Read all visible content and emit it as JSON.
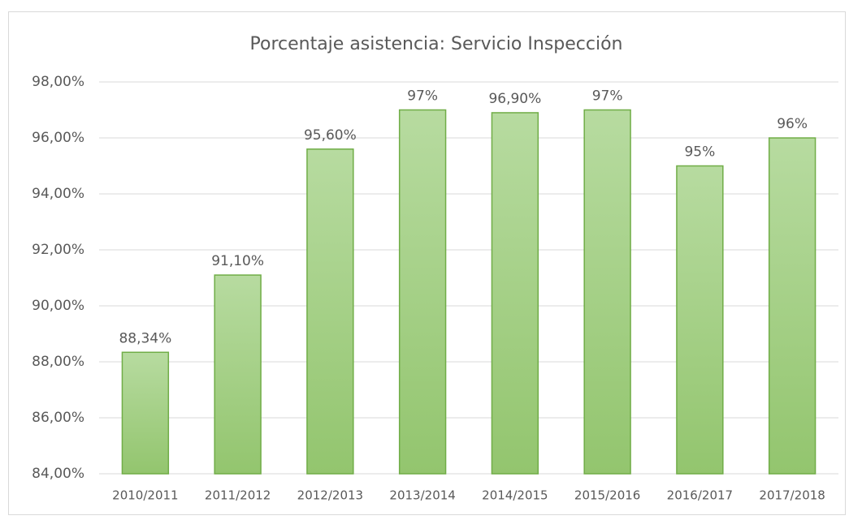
{
  "chart_data": {
    "type": "bar",
    "title": "Porcentaje asistencia: Servicio Inspección",
    "categories": [
      "2010/2011",
      "2011/2012",
      "2012/2013",
      "2013/2014",
      "2014/2015",
      "2015/2016",
      "2016/2017",
      "2017/2018"
    ],
    "values": [
      88.34,
      91.1,
      95.6,
      97,
      96.9,
      97,
      95,
      96
    ],
    "value_labels": [
      "88,34%",
      "91,10%",
      "95,60%",
      "97%",
      "96,90%",
      "97%",
      "95%",
      "96%"
    ],
    "color": "#a9d18e",
    "ylim": [
      84,
      98
    ],
    "yticks": [
      {
        "value": 84,
        "label": "84,00%"
      },
      {
        "value": 86,
        "label": "86,00%"
      },
      {
        "value": 88,
        "label": "88,00%"
      },
      {
        "value": 90,
        "label": "90,00%"
      },
      {
        "value": 92,
        "label": "92,00%"
      },
      {
        "value": 94,
        "label": "94,00%"
      },
      {
        "value": 96,
        "label": "96,00%"
      },
      {
        "value": 98,
        "label": "98,00%"
      }
    ],
    "grid": true
  }
}
